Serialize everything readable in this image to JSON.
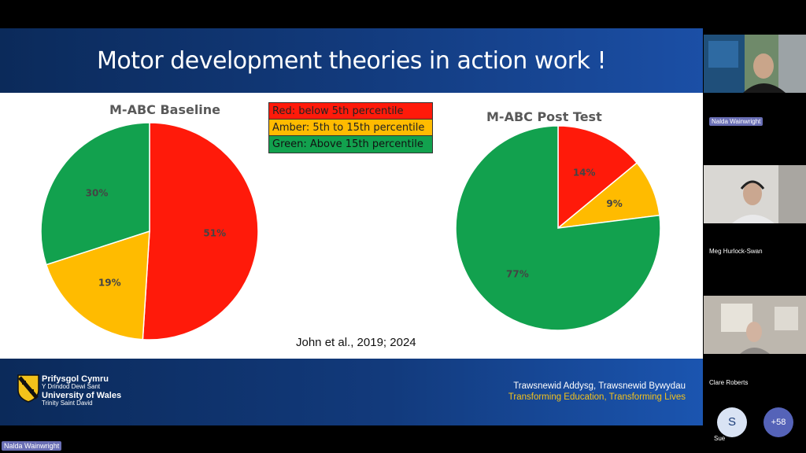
{
  "slide": {
    "title": "Motor development theories in action work !",
    "citation": "John et al., 2019; 2024"
  },
  "legend": [
    {
      "label": "Red: below 5th percentile",
      "color": "#ff1a0a"
    },
    {
      "label": "Amber: 5th to 15th percentile",
      "color": "#ffbb00"
    },
    {
      "label": "Green: Above 15th percentile",
      "color": "#12a14e"
    }
  ],
  "chart_data": [
    {
      "type": "pie",
      "title": "M-ABC Baseline",
      "categories": [
        "Red",
        "Amber",
        "Green"
      ],
      "values": [
        51,
        19,
        30
      ],
      "labels": [
        "51%",
        "19%",
        "30%"
      ],
      "colors": [
        "#ff1a0a",
        "#ffbb00",
        "#12a14e"
      ]
    },
    {
      "type": "pie",
      "title": "M-ABC Post Test",
      "categories": [
        "Red",
        "Amber",
        "Green"
      ],
      "values": [
        14,
        9,
        77
      ],
      "labels": [
        "14%",
        "9%",
        "77%"
      ],
      "colors": [
        "#ff1a0a",
        "#ffbb00",
        "#12a14e"
      ]
    }
  ],
  "branding": {
    "line1": "Prifysgol Cymru",
    "line2": "Y Drindod Dewi Sant",
    "line3": "University of Wales",
    "line4": "Trinity Saint David",
    "tagline_cy": "Trawsnewid Addysg, Trawsnewid Bywydau",
    "tagline_en": "Transforming Education, Transforming Lives"
  },
  "participants": [
    {
      "name": "Nalda Wainwright"
    },
    {
      "name": "Meg Hurlock-Swan"
    },
    {
      "name": "Clare Roberts"
    }
  ],
  "presenter_badge": "Nalda Wainwright",
  "extra": {
    "avatar_initial": "S",
    "avatar_name": "Sue",
    "more_count": "+58"
  }
}
